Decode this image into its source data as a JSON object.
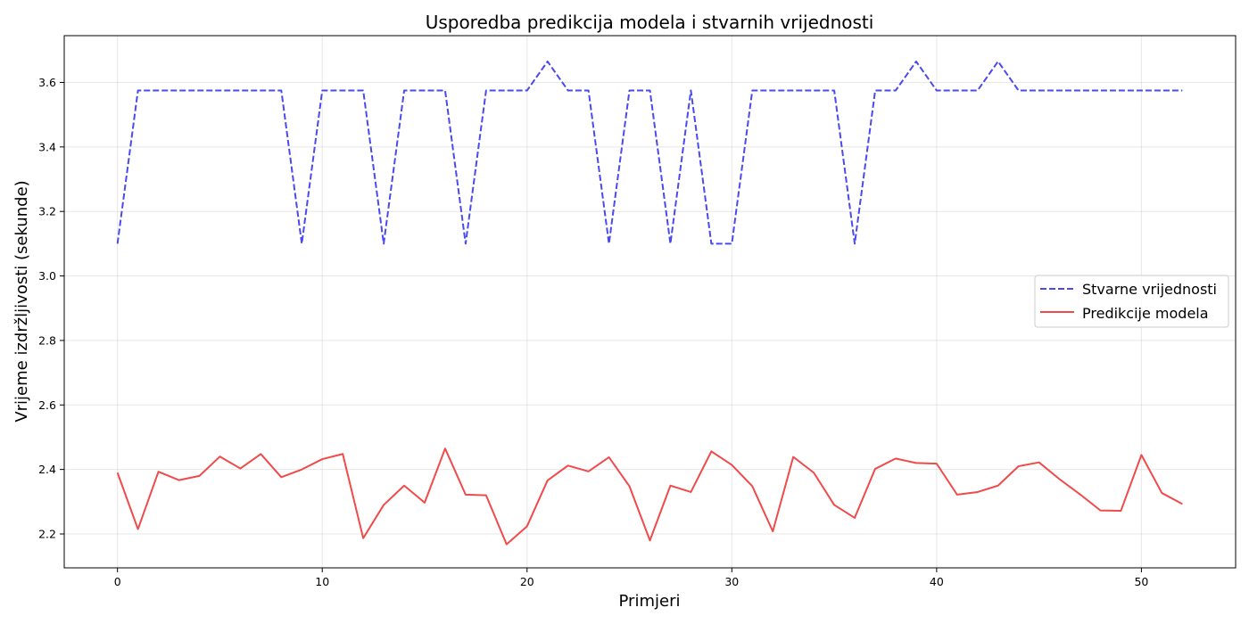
{
  "chart_data": {
    "type": "line",
    "title": "Usporedba predikcija modela i stvarnih vrijednosti",
    "xlabel": "Primjeri",
    "ylabel": "Vrijeme izdržljivosti (sekunde)",
    "xlim": [
      -2.6,
      54.6
    ],
    "ylim": [
      2.095,
      3.745
    ],
    "xticks": [
      0,
      10,
      20,
      30,
      40,
      50
    ],
    "yticks": [
      2.2,
      2.4,
      2.6,
      2.8,
      3.0,
      3.2,
      3.4,
      3.6
    ],
    "grid": true,
    "legend_position": "center-right",
    "series": [
      {
        "name": "Stvarne vrijednosti",
        "color": "#4a4af0",
        "style": "dashed",
        "values": [
          3.1,
          3.575,
          3.575,
          3.575,
          3.575,
          3.575,
          3.575,
          3.575,
          3.575,
          3.1,
          3.575,
          3.575,
          3.575,
          3.1,
          3.575,
          3.575,
          3.575,
          3.1,
          3.575,
          3.575,
          3.575,
          3.665,
          3.575,
          3.575,
          3.1,
          3.575,
          3.575,
          3.1,
          3.575,
          3.1,
          3.1,
          3.575,
          3.575,
          3.575,
          3.575,
          3.575,
          3.1,
          3.575,
          3.575,
          3.665,
          3.575,
          3.575,
          3.575,
          3.665,
          3.575,
          3.575,
          3.575,
          3.575,
          3.575,
          3.575,
          3.575,
          3.575,
          3.575
        ]
      },
      {
        "name": "Predikcije modela",
        "color": "#f04a4a",
        "style": "solid",
        "values": [
          2.39,
          2.215,
          2.393,
          2.367,
          2.38,
          2.44,
          2.403,
          2.448,
          2.376,
          2.4,
          2.432,
          2.448,
          2.187,
          2.29,
          2.35,
          2.297,
          2.465,
          2.322,
          2.32,
          2.168,
          2.224,
          2.366,
          2.412,
          2.394,
          2.438,
          2.348,
          2.18,
          2.35,
          2.33,
          2.456,
          2.414,
          2.348,
          2.208,
          2.439,
          2.39,
          2.29,
          2.25,
          2.402,
          2.434,
          2.42,
          2.418,
          2.322,
          2.33,
          2.35,
          2.41,
          2.422,
          2.37,
          2.323,
          2.273,
          2.272,
          2.445,
          2.327,
          2.293
        ]
      }
    ]
  }
}
